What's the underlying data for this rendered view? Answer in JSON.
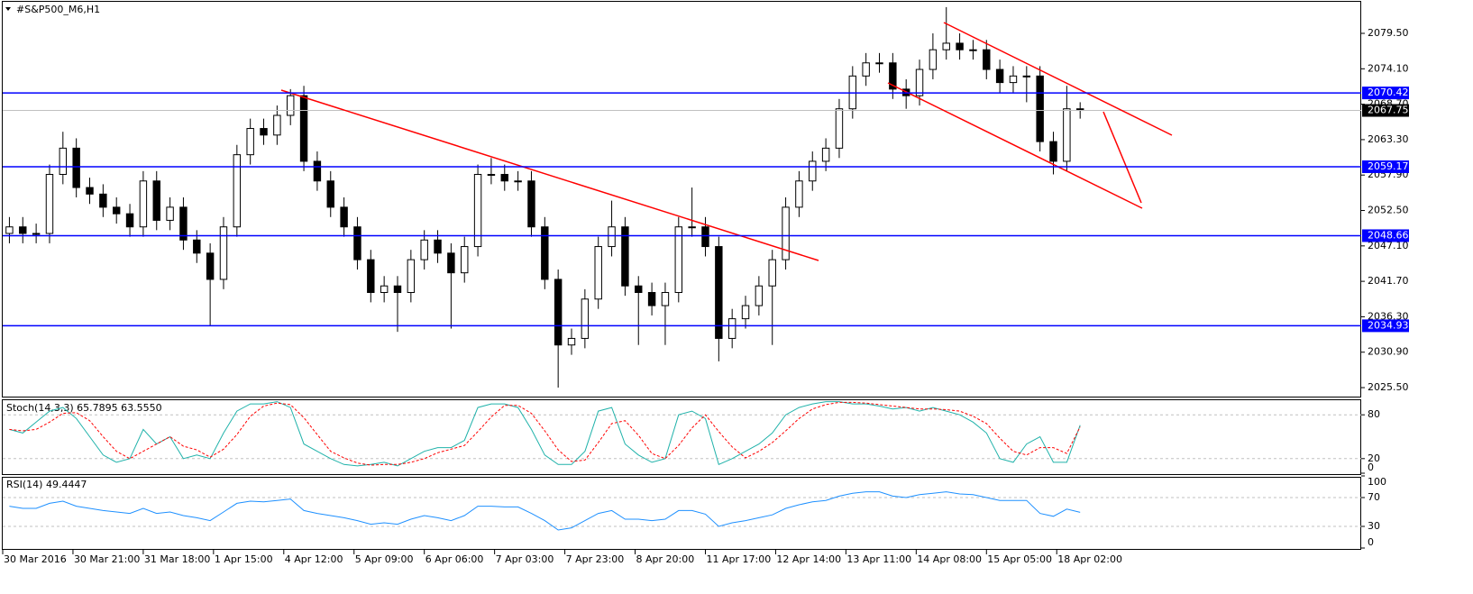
{
  "chart_data": [
    {
      "type": "candlestick",
      "title": "#S&P500_M6,H1",
      "open": [
        2049,
        2050,
        2049,
        2049,
        2058,
        2062,
        2056,
        2055,
        2053,
        2052,
        2050,
        2057,
        2051,
        2053,
        2048,
        2046,
        2042,
        2050,
        2061,
        2065,
        2064,
        2067,
        2070,
        2060,
        2057,
        2053,
        2050,
        2045,
        2040,
        2041,
        2040,
        2045,
        2048,
        2046,
        2043,
        2047,
        2058,
        2058,
        2057,
        2057,
        2050,
        2042,
        2032,
        2033,
        2039,
        2047,
        2050,
        2041,
        2040,
        2038,
        2040,
        2050,
        2050,
        2047,
        2033,
        2036,
        2038,
        2041,
        2045,
        2053,
        2057,
        2060,
        2062,
        2068,
        2073,
        2075,
        2075,
        2071,
        2070,
        2074,
        2077,
        2078,
        2077,
        2077,
        2074,
        2072,
        2073,
        2073,
        2063,
        2060,
        2068
      ],
      "high": [
        2051.5,
        2051.5,
        2050.5,
        2059.5,
        2064.5,
        2063.5,
        2057.5,
        2056.5,
        2054.5,
        2053.5,
        2058.5,
        2058.5,
        2054.5,
        2054.5,
        2049.5,
        2047.5,
        2051.5,
        2062.5,
        2066.5,
        2066.5,
        2068.5,
        2071,
        2071.5,
        2061.5,
        2058.5,
        2054.5,
        2051.5,
        2046.5,
        2042.5,
        2042.5,
        2046.5,
        2049.5,
        2049.5,
        2047.5,
        2048.5,
        2059.5,
        2060.5,
        2059.5,
        2058.5,
        2058.5,
        2051.5,
        2043.5,
        2034.5,
        2040.5,
        2048.5,
        2054,
        2051.5,
        2042.5,
        2041.5,
        2041.5,
        2051.5,
        2056,
        2051.5,
        2048.5,
        2037.5,
        2039.5,
        2042.5,
        2046.5,
        2054.5,
        2058.5,
        2061.5,
        2063.5,
        2069.5,
        2074.5,
        2076.5,
        2076.5,
        2076.5,
        2072.5,
        2075.5,
        2079.5,
        2083.5,
        2079.5,
        2078.5,
        2078.5,
        2075.5,
        2074.5,
        2074.5,
        2074.5,
        2064.5,
        2071.5,
        2069
      ],
      "low": [
        2047.5,
        2047.5,
        2047.5,
        2047.5,
        2056.5,
        2054.5,
        2053.5,
        2051.5,
        2050.5,
        2048.5,
        2048.5,
        2049.5,
        2049.5,
        2046.5,
        2044.5,
        2035,
        2040.5,
        2048.5,
        2059.5,
        2062.5,
        2062.5,
        2065.5,
        2058.5,
        2055.5,
        2051.5,
        2048.5,
        2043.5,
        2038.5,
        2038.5,
        2034,
        2038.5,
        2043.5,
        2044.5,
        2034.5,
        2041.5,
        2045.5,
        2056.5,
        2055.5,
        2055.5,
        2048.5,
        2040.5,
        2025.5,
        2030.5,
        2031.5,
        2037.5,
        2045.5,
        2039.5,
        2032,
        2036.5,
        2032,
        2038.5,
        2048.5,
        2045.5,
        2029.5,
        2031.5,
        2034.5,
        2036.5,
        2032,
        2043.5,
        2051.5,
        2055.5,
        2058.5,
        2060.5,
        2066.5,
        2071.5,
        2073.5,
        2069.5,
        2068,
        2068.5,
        2072.5,
        2075.5,
        2075.5,
        2075.5,
        2072.5,
        2070.5,
        2070.5,
        2069,
        2061.5,
        2058,
        2058.5,
        2066.5
      ],
      "close": [
        2050,
        2049,
        2049,
        2058,
        2062,
        2056,
        2055,
        2053,
        2052,
        2050,
        2057,
        2051,
        2053,
        2048,
        2046,
        2042,
        2050,
        2061,
        2065,
        2064,
        2067,
        2070,
        2060,
        2057,
        2053,
        2050,
        2045,
        2040,
        2041,
        2040,
        2045,
        2048,
        2046,
        2043,
        2047,
        2058,
        2058,
        2057,
        2057,
        2050,
        2042,
        2032,
        2033,
        2039,
        2047,
        2050,
        2041,
        2040,
        2038,
        2040,
        2050,
        2050,
        2047,
        2033,
        2036,
        2038,
        2041,
        2045,
        2053,
        2057,
        2060,
        2062,
        2068,
        2073,
        2075,
        2075,
        2071,
        2070,
        2074,
        2077,
        2078,
        2077,
        2077,
        2074,
        2072,
        2073,
        2073,
        2063,
        2060,
        2068,
        2067.75
      ],
      "up_color": "#ffffff",
      "down_color": "#000000",
      "wick_color": "#000000",
      "xlim": [
        0,
        101.5
      ],
      "xticks": [
        {
          "value": 0,
          "label": "30 Mar 2016"
        },
        {
          "value": 5.25,
          "label": "30 Mar 21:00"
        },
        {
          "value": 10.5,
          "label": "31 Mar 18:00"
        },
        {
          "value": 15.75,
          "label": "1 Apr 15:00"
        },
        {
          "value": 21,
          "label": "4 Apr 12:00"
        },
        {
          "value": 26.25,
          "label": "5 Apr 09:00"
        },
        {
          "value": 31.5,
          "label": "6 Apr 06:00"
        },
        {
          "value": 36.75,
          "label": "7 Apr 03:00"
        },
        {
          "value": 42,
          "label": "7 Apr 23:00"
        },
        {
          "value": 47.25,
          "label": "8 Apr 20:00"
        },
        {
          "value": 52.5,
          "label": "11 Apr 17:00"
        },
        {
          "value": 57.75,
          "label": "12 Apr 14:00"
        },
        {
          "value": 63,
          "label": "13 Apr 11:00"
        },
        {
          "value": 68.25,
          "label": "14 Apr 08:00"
        },
        {
          "value": 73.5,
          "label": "15 Apr 05:00"
        },
        {
          "value": 78.75,
          "label": "18 Apr 02:00"
        }
      ],
      "ylim": [
        2024.13,
        2084.31
      ],
      "yticks": [
        {
          "value": 2079.5,
          "label": "2079.50"
        },
        {
          "value": 2074.1,
          "label": "2074.10"
        },
        {
          "value": 2068.7,
          "label": "2068.70"
        },
        {
          "value": 2063.3,
          "label": "2063.30"
        },
        {
          "value": 2057.9,
          "label": "2057.90"
        },
        {
          "value": 2052.5,
          "label": "2052.50"
        },
        {
          "value": 2047.1,
          "label": "2047.10"
        },
        {
          "value": 2041.7,
          "label": "2041.70"
        },
        {
          "value": 2036.3,
          "label": "2036.30"
        },
        {
          "value": 2030.9,
          "label": "2030.90"
        },
        {
          "value": 2025.5,
          "label": "2025.50"
        }
      ],
      "levels": [
        2070.42,
        2059.17,
        2048.66,
        2034.93
      ],
      "level_color": "#0000ff",
      "last_price": 2067.75,
      "last_price_color": "#c0c0c0"
    },
    {
      "type": "line",
      "title": "Stoch(14,3,3) 65.7895 63.5550",
      "ylim": [
        0,
        100
      ],
      "yticks": [
        0,
        20,
        80
      ],
      "series": [
        {
          "color": "#20b2aa",
          "dashed": false,
          "values": [
            60,
            55,
            70,
            85,
            90,
            75,
            50,
            25,
            15,
            20,
            60,
            40,
            50,
            20,
            25,
            20,
            55,
            85,
            95,
            95,
            98,
            90,
            40,
            30,
            20,
            12,
            10,
            12,
            15,
            10,
            20,
            30,
            35,
            35,
            45,
            90,
            95,
            95,
            90,
            60,
            25,
            12,
            12,
            30,
            85,
            90,
            40,
            25,
            15,
            20,
            80,
            85,
            75,
            12,
            20,
            30,
            40,
            55,
            80,
            90,
            95,
            98,
            98,
            95,
            95,
            92,
            88,
            90,
            85,
            90,
            85,
            80,
            70,
            55,
            20,
            15,
            40,
            50,
            15,
            15,
            65.7895
          ]
        },
        {
          "color": "#ff0000",
          "dashed": true,
          "values": [
            60,
            58,
            60,
            70,
            82,
            83,
            72,
            50,
            30,
            20,
            30,
            40,
            50,
            37,
            32,
            22,
            33,
            53,
            78,
            92,
            96,
            94,
            76,
            53,
            30,
            21,
            14,
            11,
            12,
            12,
            15,
            20,
            28,
            33,
            38,
            57,
            77,
            93,
            93,
            82,
            58,
            32,
            16,
            18,
            42,
            68,
            72,
            52,
            27,
            20,
            38,
            62,
            80,
            57,
            36,
            21,
            30,
            42,
            58,
            75,
            88,
            94,
            97,
            97,
            96,
            94,
            92,
            90,
            88,
            88,
            87,
            85,
            78,
            68,
            48,
            30,
            25,
            35,
            35,
            27,
            63.555
          ]
        }
      ]
    },
    {
      "type": "line",
      "title": "RSI(14) 49.4447",
      "ylim": [
        0,
        100
      ],
      "yticks": [
        0,
        30,
        70,
        100
      ],
      "series": [
        {
          "color": "#1e90ff",
          "dashed": false,
          "values": [
            58,
            55,
            55,
            62,
            65,
            58,
            55,
            52,
            50,
            48,
            55,
            48,
            50,
            45,
            42,
            38,
            50,
            62,
            65,
            64,
            66,
            68,
            52,
            48,
            45,
            42,
            38,
            33,
            35,
            33,
            40,
            45,
            42,
            38,
            45,
            58,
            58,
            57,
            57,
            48,
            38,
            25,
            28,
            38,
            48,
            52,
            40,
            40,
            38,
            40,
            52,
            52,
            47,
            30,
            35,
            38,
            42,
            46,
            55,
            60,
            64,
            66,
            72,
            76,
            78,
            78,
            72,
            70,
            74,
            76,
            78,
            75,
            74,
            70,
            66,
            66,
            66,
            48,
            44,
            54,
            49.4447
          ]
        }
      ]
    }
  ]
}
